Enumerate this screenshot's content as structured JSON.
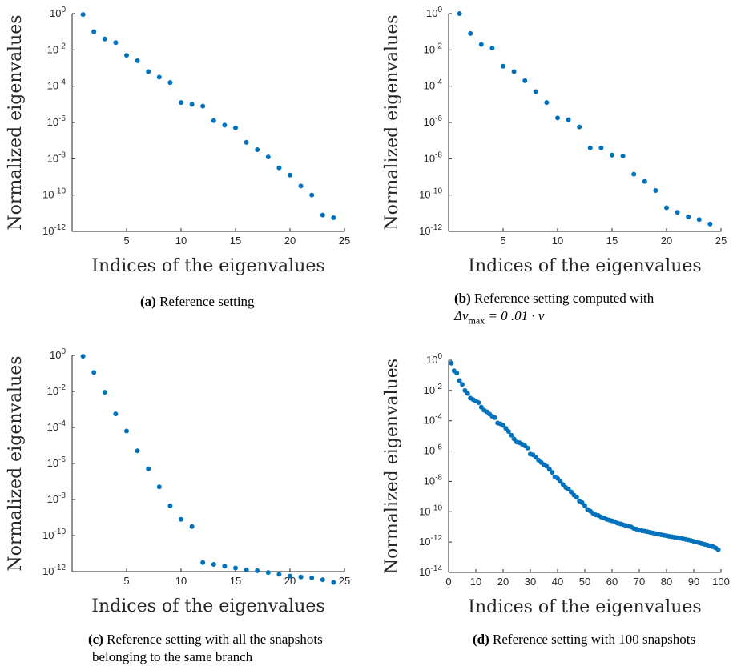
{
  "chart_data": [
    {
      "id": "a",
      "type": "scatter",
      "xlabel": "Indices of the eigenvalues",
      "ylabel": "Normalized eigenvalues",
      "xlim": [
        0,
        25
      ],
      "xticks": [
        5,
        10,
        15,
        20,
        25
      ],
      "ylim_log10": [
        -12,
        0
      ],
      "yticks_log10": [
        0,
        -2,
        -4,
        -6,
        -8,
        -10,
        -12
      ],
      "y_scale": "log",
      "grid": false,
      "marker_color": "#0072BD",
      "x": [
        1,
        2,
        3,
        4,
        5,
        6,
        7,
        8,
        9,
        10,
        11,
        12,
        13,
        14,
        15,
        16,
        17,
        18,
        19,
        20,
        21,
        22,
        23,
        24
      ],
      "y_log10": [
        -0.05,
        -1.0,
        -1.4,
        -1.6,
        -2.3,
        -2.6,
        -3.2,
        -3.5,
        -3.8,
        -4.9,
        -5.0,
        -5.1,
        -5.9,
        -6.15,
        -6.3,
        -7.1,
        -7.5,
        -7.9,
        -8.5,
        -8.9,
        -9.5,
        -10.0,
        -11.1,
        -11.25
      ]
    },
    {
      "id": "b",
      "type": "scatter",
      "xlabel": "Indices of the eigenvalues",
      "ylabel": "Normalized eigenvalues",
      "xlim": [
        0,
        25
      ],
      "xticks": [
        5,
        10,
        15,
        20,
        25
      ],
      "ylim_log10": [
        -12,
        0
      ],
      "yticks_log10": [
        0,
        -2,
        -4,
        -6,
        -8,
        -10,
        -12
      ],
      "y_scale": "log",
      "grid": false,
      "marker_color": "#0072BD",
      "x": [
        1,
        2,
        3,
        4,
        5,
        6,
        7,
        8,
        9,
        10,
        11,
        12,
        13,
        14,
        15,
        16,
        17,
        18,
        19,
        20,
        21,
        22,
        23,
        24
      ],
      "y_log10": [
        0.0,
        -1.1,
        -1.7,
        -1.9,
        -2.9,
        -3.2,
        -3.7,
        -4.3,
        -4.9,
        -5.75,
        -5.85,
        -6.25,
        -7.4,
        -7.4,
        -7.8,
        -7.85,
        -8.85,
        -9.25,
        -9.75,
        -10.7,
        -10.95,
        -11.2,
        -11.35,
        -11.6
      ]
    },
    {
      "id": "c",
      "type": "scatter",
      "xlabel": "Indices of the eigenvalues",
      "ylabel": "Normalized eigenvalues",
      "xlim": [
        0,
        25
      ],
      "xticks": [
        5,
        10,
        15,
        20,
        25
      ],
      "ylim_log10": [
        -12,
        0
      ],
      "yticks_log10": [
        0,
        -2,
        -4,
        -6,
        -8,
        -10,
        -12
      ],
      "y_scale": "log",
      "grid": false,
      "marker_color": "#0072BD",
      "x": [
        1,
        2,
        3,
        4,
        5,
        6,
        7,
        8,
        9,
        10,
        11,
        12,
        13,
        14,
        15,
        16,
        17,
        18,
        19,
        20,
        21,
        22,
        23,
        24
      ],
      "y_log10": [
        -0.05,
        -0.95,
        -2.05,
        -3.25,
        -4.2,
        -5.3,
        -6.3,
        -7.3,
        -8.35,
        -9.1,
        -9.5,
        -11.5,
        -11.6,
        -11.7,
        -11.8,
        -11.9,
        -11.95,
        -12.05,
        -12.15,
        -12.25,
        -12.3,
        -12.35,
        -12.45,
        -12.6
      ]
    },
    {
      "id": "d",
      "type": "scatter",
      "xlabel": "Indices of the eigenvalues",
      "ylabel": "Normalized eigenvalues",
      "xlim": [
        0,
        100
      ],
      "xticks": [
        0,
        10,
        20,
        30,
        40,
        50,
        60,
        70,
        80,
        90,
        100
      ],
      "ylim_log10": [
        -14,
        0
      ],
      "yticks_log10": [
        0,
        -2,
        -4,
        -6,
        -8,
        -10,
        -12,
        -14
      ],
      "y_scale": "log",
      "grid": false,
      "marker_color": "#0072BD",
      "x": [
        1,
        2,
        3,
        4,
        5,
        6,
        7,
        8,
        9,
        10,
        11,
        12,
        13,
        14,
        15,
        16,
        17,
        18,
        19,
        20,
        21,
        22,
        23,
        24,
        25,
        26,
        27,
        28,
        29,
        30,
        31,
        32,
        33,
        34,
        35,
        36,
        37,
        38,
        39,
        40,
        41,
        42,
        43,
        44,
        45,
        46,
        47,
        48,
        49,
        50,
        51,
        52,
        53,
        54,
        55,
        56,
        57,
        58,
        59,
        60,
        61,
        62,
        63,
        64,
        65,
        66,
        67,
        68,
        69,
        70,
        71,
        72,
        73,
        74,
        75,
        76,
        77,
        78,
        79,
        80,
        81,
        82,
        83,
        84,
        85,
        86,
        87,
        88,
        89,
        90,
        91,
        92,
        93,
        94,
        95,
        96,
        97,
        98,
        99
      ],
      "y_log10": [
        -0.2,
        -0.7,
        -0.85,
        -1.35,
        -1.6,
        -2.0,
        -2.2,
        -2.5,
        -2.6,
        -2.7,
        -2.8,
        -3.1,
        -3.3,
        -3.4,
        -3.55,
        -3.7,
        -3.8,
        -4.15,
        -4.2,
        -4.3,
        -4.5,
        -4.7,
        -4.95,
        -5.2,
        -5.4,
        -5.45,
        -5.55,
        -5.65,
        -5.8,
        -6.2,
        -6.25,
        -6.4,
        -6.6,
        -6.75,
        -6.9,
        -7.0,
        -7.2,
        -7.4,
        -7.7,
        -7.8,
        -8.0,
        -8.2,
        -8.4,
        -8.5,
        -8.7,
        -8.9,
        -9.05,
        -9.3,
        -9.4,
        -9.6,
        -9.85,
        -9.95,
        -10.1,
        -10.2,
        -10.25,
        -10.35,
        -10.4,
        -10.5,
        -10.55,
        -10.6,
        -10.65,
        -10.75,
        -10.8,
        -10.85,
        -10.9,
        -10.95,
        -11.0,
        -11.1,
        -11.15,
        -11.2,
        -11.25,
        -11.28,
        -11.32,
        -11.36,
        -11.4,
        -11.44,
        -11.48,
        -11.52,
        -11.55,
        -11.58,
        -11.62,
        -11.65,
        -11.68,
        -11.71,
        -11.75,
        -11.78,
        -11.82,
        -11.86,
        -11.9,
        -11.95,
        -12.0,
        -12.05,
        -12.1,
        -12.15,
        -12.2,
        -12.25,
        -12.3,
        -12.38,
        -12.5
      ]
    }
  ],
  "captions": {
    "a": {
      "tag": "(a)",
      "text": "Reference setting"
    },
    "b": {
      "tag": "(b)",
      "text": "Reference setting computed with",
      "line2": "Δν",
      "line2_sub": "max",
      "line2_rest": " = 0 .01 · ν"
    },
    "c": {
      "tag": "(c)",
      "text": "Reference setting with all the snapshots",
      "line2": "belonging to the same branch"
    },
    "d": {
      "tag": "(d)",
      "text": "Reference setting with 100 snapshots"
    }
  }
}
